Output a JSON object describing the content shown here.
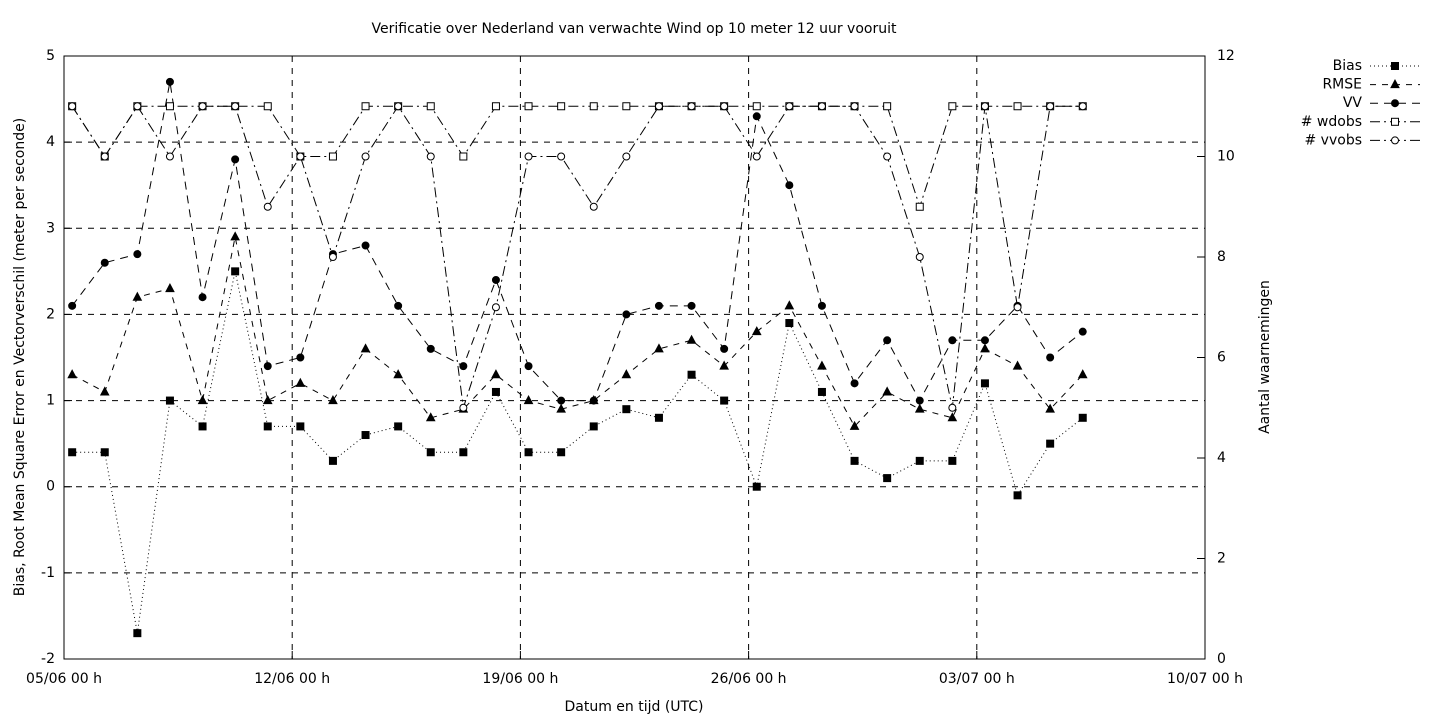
{
  "chart_data": {
    "type": "line",
    "title": "Verificatie over Nederland van verwachte Wind op 10 meter 12 uur vooruit",
    "x_label": "Datum en tijd (UTC)",
    "y_label": "Bias, Root Mean Square Error en Vectorverschil (meter per seconde)",
    "y2_label": "Aantal waarnemingen",
    "x": [
      0.25,
      1.25,
      2.25,
      3.25,
      4.25,
      5.25,
      6.25,
      7.25,
      8.25,
      9.25,
      10.25,
      11.25,
      12.25,
      13.25,
      14.25,
      15.25,
      16.25,
      17.25,
      18.25,
      19.25,
      20.25,
      21.25,
      22.25,
      23.25,
      24.25,
      25.25,
      26.25,
      27.25,
      28.25,
      29.25,
      30.25,
      31.25
    ],
    "xlim": [
      0,
      35
    ],
    "xticks": [
      {
        "value": 0,
        "label": "05/06 00 h"
      },
      {
        "value": 7,
        "label": "12/06 00 h"
      },
      {
        "value": 14,
        "label": "19/06 00 h"
      },
      {
        "value": 21,
        "label": "26/06 00 h"
      },
      {
        "value": 28,
        "label": "03/07 00 h"
      },
      {
        "value": 35,
        "label": "10/07 00 h"
      }
    ],
    "ylim": [
      -2,
      5
    ],
    "yticks": [
      -2,
      -1,
      0,
      1,
      2,
      3,
      4,
      5
    ],
    "y2lim": [
      0,
      12
    ],
    "y2ticks": [
      0,
      2,
      4,
      6,
      8,
      10,
      12
    ],
    "grid": true,
    "legend": "top-right",
    "series": [
      {
        "name": "Bias",
        "color": "#000000",
        "line_style": "dotted",
        "marker": "filled-square",
        "values": [
          0.4,
          0.4,
          -1.7,
          1.0,
          0.7,
          2.5,
          0.7,
          0.7,
          0.3,
          0.6,
          0.7,
          0.4,
          0.4,
          1.1,
          0.4,
          0.4,
          0.7,
          0.9,
          0.8,
          1.3,
          1.0,
          0.0,
          1.9,
          1.1,
          0.3,
          0.1,
          0.3,
          0.3,
          1.2,
          -0.1,
          0.5,
          0.8
        ]
      },
      {
        "name": "RMSE",
        "color": "#000000",
        "line_style": "dashed",
        "marker": "filled-triangle",
        "values": [
          1.3,
          1.1,
          2.2,
          2.3,
          1.0,
          2.9,
          1.0,
          1.2,
          1.0,
          1.6,
          1.3,
          0.8,
          0.9,
          1.3,
          1.0,
          0.9,
          1.0,
          1.3,
          1.6,
          1.7,
          1.4,
          1.8,
          2.1,
          1.4,
          0.7,
          1.1,
          0.9,
          0.8,
          1.6,
          1.4,
          0.9,
          1.3
        ]
      },
      {
        "name": "VV",
        "color": "#000000",
        "line_style": "long-dashed",
        "marker": "filled-circle",
        "values": [
          2.1,
          2.6,
          2.7,
          4.7,
          2.2,
          3.8,
          1.4,
          1.5,
          2.7,
          2.8,
          2.1,
          1.6,
          1.4,
          2.4,
          1.4,
          1.0,
          1.0,
          2.0,
          2.1,
          2.1,
          1.6,
          4.3,
          3.5,
          2.1,
          1.2,
          1.7,
          1.0,
          1.7,
          1.7,
          2.1,
          1.5,
          1.8
        ]
      },
      {
        "name": "# wdobs",
        "color": "#000000",
        "line_style": "dash-dot",
        "marker": "open-square",
        "axis": "y2",
        "values": [
          11,
          10,
          11,
          11,
          11,
          11,
          11,
          10,
          10,
          11,
          11,
          11,
          10,
          11,
          11,
          11,
          11,
          11,
          11,
          11,
          11,
          11,
          11,
          11,
          11,
          11,
          9,
          11,
          11,
          11,
          11,
          11
        ]
      },
      {
        "name": "# vvobs",
        "color": "#000000",
        "line_style": "dash-dot",
        "marker": "open-circle",
        "axis": "y2",
        "values": [
          11,
          10,
          11,
          10,
          11,
          11,
          9,
          10,
          8,
          10,
          11,
          10,
          5,
          7,
          10,
          10,
          9,
          10,
          11,
          11,
          11,
          10,
          11,
          11,
          11,
          10,
          8,
          5,
          11,
          7,
          11,
          11
        ]
      }
    ]
  }
}
